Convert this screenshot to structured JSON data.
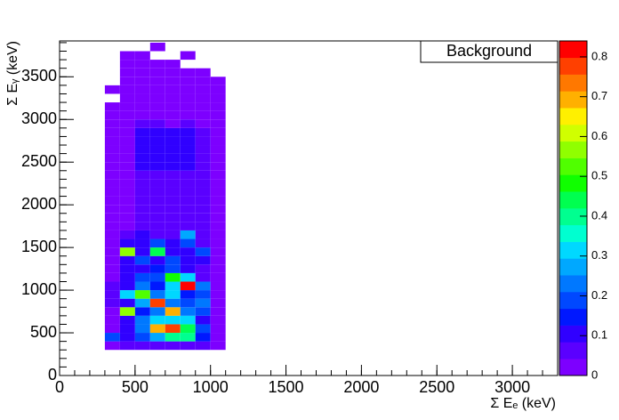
{
  "chart_data": {
    "type": "heatmap",
    "legend_text": "Background",
    "x_label": "Σ Eₑ (keV)",
    "y_label": "Σ Eᵧ (keV)",
    "x_bins": [
      300,
      400,
      500,
      600,
      700,
      800,
      900,
      1000,
      1100
    ],
    "y_bins": [
      300,
      400,
      500,
      600,
      700,
      800,
      900,
      1000,
      1100,
      1200,
      1300,
      1400,
      1500,
      1600,
      1700,
      1800,
      1900,
      2000,
      2100,
      2200,
      2300,
      2400,
      2500,
      2600,
      2700,
      2800,
      2900,
      3000,
      3100,
      3200,
      3300,
      3400,
      3500,
      3600,
      3700,
      3800,
      3900
    ],
    "z": [
      [
        0.03,
        0.06,
        0.06,
        0.06,
        0.06,
        0.06,
        0.06,
        0.03
      ],
      [
        0.2,
        0.12,
        0.18,
        0.28,
        0.4,
        0.4,
        0.15,
        0.04
      ],
      [
        0.04,
        0.1,
        0.22,
        0.7,
        0.78,
        0.45,
        0.2,
        0.04
      ],
      [
        0.04,
        0.1,
        0.22,
        0.3,
        0.3,
        0.3,
        0.12,
        0.04
      ],
      [
        0.04,
        0.55,
        0.15,
        0.22,
        0.68,
        0.22,
        0.2,
        0.04
      ],
      [
        0.05,
        0.1,
        0.28,
        0.78,
        0.22,
        0.2,
        0.22,
        0.04
      ],
      [
        0.08,
        0.3,
        0.52,
        0.22,
        0.32,
        0.15,
        0.2,
        0.04
      ],
      [
        0.08,
        0.1,
        0.22,
        0.15,
        0.3,
        0.82,
        0.22,
        0.04
      ],
      [
        0.04,
        0.1,
        0.2,
        0.2,
        0.48,
        0.3,
        0.08,
        0.04
      ],
      [
        0.04,
        0.12,
        0.1,
        0.15,
        0.2,
        0.1,
        0.06,
        0.04
      ],
      [
        0.04,
        0.1,
        0.18,
        0.12,
        0.2,
        0.1,
        0.1,
        0.04
      ],
      [
        0.04,
        0.55,
        0.12,
        0.45,
        0.12,
        0.1,
        0.18,
        0.04
      ],
      [
        0.04,
        0.1,
        0.1,
        0.18,
        0.1,
        0.2,
        0.08,
        0.04
      ],
      [
        0.04,
        0.06,
        0.1,
        0.06,
        0.08,
        0.28,
        0.06,
        0.04
      ],
      [
        0.03,
        0.04,
        0.07,
        0.07,
        0.08,
        0.07,
        0.05,
        0.03
      ],
      [
        0.03,
        0.04,
        0.07,
        0.07,
        0.08,
        0.07,
        0.05,
        0.03
      ],
      [
        0.03,
        0.04,
        0.07,
        0.07,
        0.08,
        0.07,
        0.05,
        0.03
      ],
      [
        0.03,
        0.04,
        0.07,
        0.07,
        0.08,
        0.07,
        0.05,
        0.03
      ],
      [
        0.03,
        0.04,
        0.07,
        0.07,
        0.08,
        0.07,
        0.05,
        0.03
      ],
      [
        0.03,
        0.04,
        0.07,
        0.07,
        0.08,
        0.07,
        0.05,
        0.03
      ],
      [
        0.03,
        0.04,
        0.07,
        0.07,
        0.08,
        0.07,
        0.05,
        0.03
      ],
      [
        0.03,
        0.04,
        0.09,
        0.1,
        0.1,
        0.1,
        0.05,
        0.03
      ],
      [
        0.03,
        0.04,
        0.09,
        0.1,
        0.1,
        0.1,
        0.05,
        0.03
      ],
      [
        0.03,
        0.04,
        0.09,
        0.1,
        0.1,
        0.1,
        0.05,
        0.03
      ],
      [
        0.03,
        0.04,
        0.09,
        0.1,
        0.1,
        0.1,
        0.05,
        0.03
      ],
      [
        0.03,
        0.04,
        0.09,
        0.1,
        0.1,
        0.1,
        0.05,
        0.03
      ],
      [
        0.03,
        0.04,
        0.06,
        0.06,
        0.04,
        0.06,
        0.04,
        0.03
      ],
      [
        0.03,
        0.03,
        0.03,
        0.03,
        0.03,
        0.03,
        0.03,
        0.03
      ],
      [
        0.03,
        0.03,
        0.03,
        0.03,
        0.03,
        0.03,
        0.03,
        0.03
      ],
      [
        null,
        0.03,
        0.03,
        0.03,
        0.03,
        0.03,
        0.03,
        0.03
      ],
      [
        0.03,
        0.03,
        0.03,
        0.03,
        0.03,
        0.03,
        0.03,
        0.03
      ],
      [
        null,
        0.03,
        0.03,
        0.03,
        0.03,
        0.03,
        0.03,
        0.03
      ],
      [
        null,
        0.03,
        0.03,
        0.03,
        0.03,
        0.03,
        0.03,
        null
      ],
      [
        null,
        0.03,
        0.03,
        0.03,
        0.03,
        null,
        null,
        null
      ],
      [
        null,
        0.03,
        0.03,
        null,
        null,
        0.03,
        null,
        null
      ],
      [
        null,
        null,
        null,
        0.03,
        null,
        null,
        null,
        null
      ]
    ],
    "xlim": [
      0,
      3300
    ],
    "xticks": [
      0,
      500,
      1000,
      1500,
      2000,
      2500,
      3000
    ],
    "ylim": [
      0,
      3920
    ],
    "yticks": [
      0,
      500,
      1000,
      1500,
      2000,
      2500,
      3000,
      3500
    ],
    "zlim": [
      0,
      0.84
    ],
    "zticks": [
      0,
      0.1,
      0.2,
      0.3,
      0.4,
      0.5,
      0.6,
      0.7,
      0.8
    ],
    "palette": [
      "#7d00ff",
      "#5a00ff",
      "#3000ff",
      "#0018ff",
      "#0048ff",
      "#0078ff",
      "#00a8ff",
      "#00d8ff",
      "#00ffd0",
      "#00ff90",
      "#00ff50",
      "#10ff00",
      "#50ff00",
      "#90ff00",
      "#d0ff00",
      "#fff000",
      "#ffb000",
      "#ff7800",
      "#ff4000",
      "#ff0000"
    ]
  }
}
